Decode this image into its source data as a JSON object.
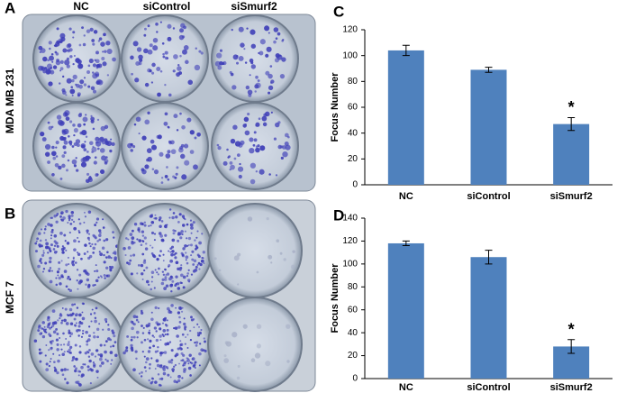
{
  "panel_labels": [
    "A",
    "B",
    "C",
    "D"
  ],
  "plate_columns": [
    "NC",
    "siControl",
    "siSmurf2"
  ],
  "plate_rows": [
    "MDA MB 231",
    "MCF 7"
  ],
  "chart_data": [
    {
      "type": "bar",
      "ylabel": "Focus Number",
      "categories": [
        "NC",
        "siControl",
        "siSmurf2"
      ],
      "values": [
        104,
        89,
        47
      ],
      "errors": [
        4,
        2,
        5
      ],
      "markers": [
        null,
        null,
        "*"
      ],
      "color": "#4f81bd",
      "ylim": [
        0,
        120
      ],
      "yticks": [
        0,
        20,
        40,
        60,
        80,
        100,
        120
      ]
    },
    {
      "type": "bar",
      "ylabel": "Focus Number",
      "categories": [
        "NC",
        "siControl",
        "siSmurf2"
      ],
      "values": [
        118,
        106,
        28
      ],
      "errors": [
        2,
        6,
        6
      ],
      "markers": [
        null,
        null,
        "*"
      ],
      "color": "#4f81bd",
      "ylim": [
        0,
        140
      ],
      "yticks": [
        0,
        20,
        40,
        60,
        80,
        100,
        120,
        140
      ]
    }
  ]
}
